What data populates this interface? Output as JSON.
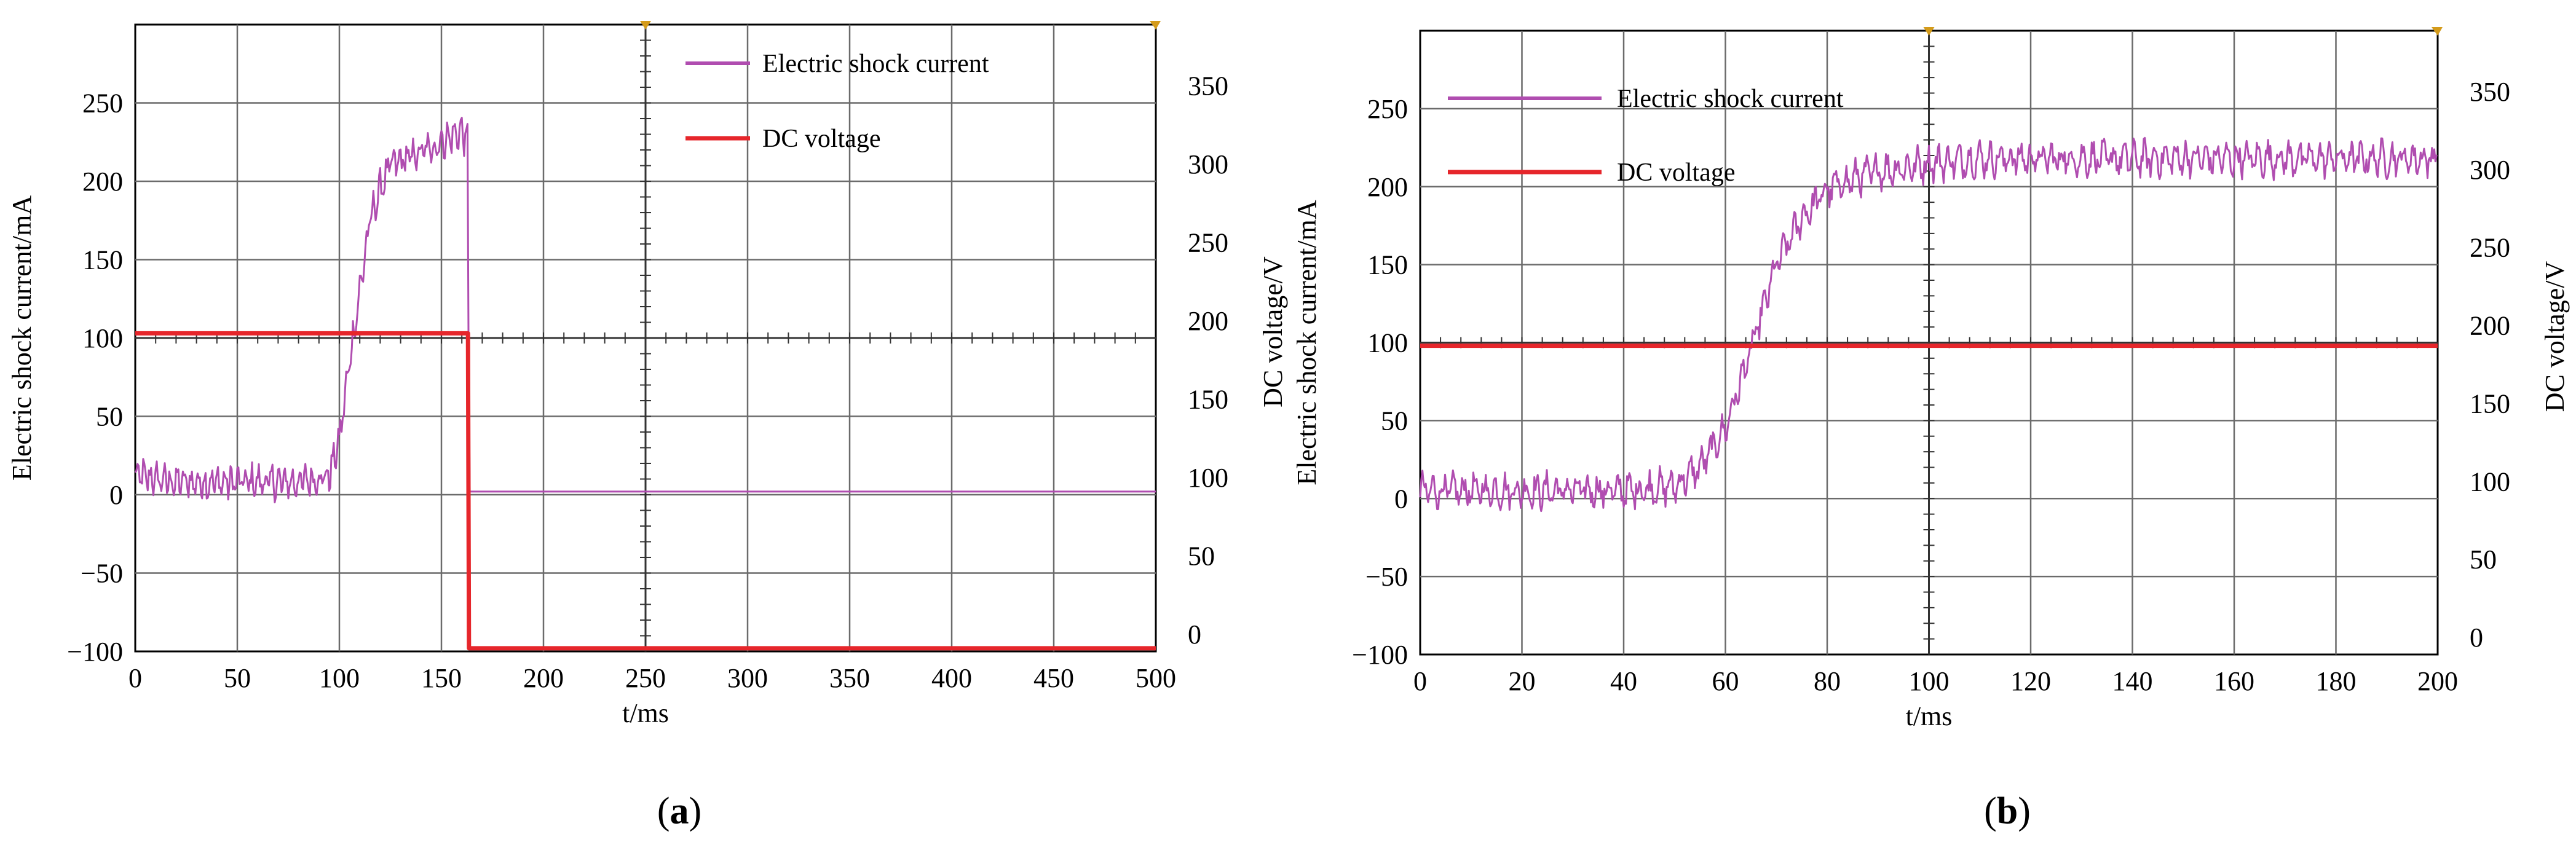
{
  "chart_data": [
    {
      "type": "line",
      "panel_label": "a",
      "xlabel": "t/ms",
      "ylabel_left": "Electric shock current/mA",
      "ylabel_right": "DC voltage/V",
      "xlim": [
        0,
        500
      ],
      "ylim_left": [
        -100,
        300
      ],
      "ylim_right": [
        0,
        400
      ],
      "x_ticks": [
        "0",
        "50",
        "100",
        "150",
        "200",
        "250",
        "300",
        "350",
        "400",
        "450",
        "500"
      ],
      "y_left_ticks": [
        "250",
        "200",
        "150",
        "100",
        "50",
        "0",
        "−50",
        "−100"
      ],
      "y_right_ticks": [
        "350",
        "300",
        "250",
        "200",
        "150",
        "100",
        "50",
        "0"
      ],
      "grid": true,
      "legend_position": "top-right",
      "series": [
        {
          "name": "Electric shock current",
          "axis": "left",
          "color": "#b04db0",
          "x": [
            0,
            20,
            40,
            60,
            80,
            95,
            100,
            105,
            110,
            115,
            120,
            125,
            130,
            140,
            150,
            160,
            163,
            163.5,
            200,
            300,
            400,
            500
          ],
          "y": [
            12,
            8,
            8,
            8,
            8,
            12,
            35,
            85,
            130,
            175,
            195,
            210,
            213,
            218,
            225,
            232,
            225,
            2,
            2,
            2,
            2,
            2
          ]
        },
        {
          "name": "DC voltage",
          "axis": "right",
          "color": "#e6262b",
          "x": [
            0,
            163,
            163.5,
            500
          ],
          "y": [
            203,
            203,
            2,
            2
          ]
        }
      ]
    },
    {
      "type": "line",
      "panel_label": "b",
      "xlabel": "t/ms",
      "ylabel_left": "Electric shock current/mA",
      "ylabel_right": "DC voltage/V",
      "xlim": [
        0,
        200
      ],
      "ylim_left": [
        -100,
        300
      ],
      "ylim_right": [
        0,
        400
      ],
      "x_ticks": [
        "0",
        "20",
        "40",
        "60",
        "80",
        "100",
        "120",
        "140",
        "160",
        "180",
        "200"
      ],
      "y_left_ticks": [
        "250",
        "200",
        "150",
        "100",
        "50",
        "0",
        "−50",
        "−100"
      ],
      "y_right_ticks": [
        "350",
        "300",
        "250",
        "200",
        "150",
        "100",
        "50",
        "0"
      ],
      "grid": true,
      "legend_position": "top-left",
      "series": [
        {
          "name": "Electric shock current",
          "axis": "left",
          "color": "#b04db0",
          "x": [
            0,
            10,
            20,
            30,
            40,
            50,
            55,
            60,
            65,
            70,
            75,
            80,
            85,
            90,
            95,
            100,
            110,
            120,
            140,
            160,
            180,
            200
          ],
          "y": [
            5,
            5,
            5,
            5,
            5,
            8,
            20,
            45,
            95,
            150,
            180,
            198,
            205,
            210,
            212,
            215,
            218,
            218,
            218,
            218,
            218,
            218
          ]
        },
        {
          "name": "DC voltage",
          "axis": "right",
          "color": "#e6262b",
          "x": [
            0,
            200
          ],
          "y": [
            198,
            198
          ]
        }
      ]
    }
  ]
}
